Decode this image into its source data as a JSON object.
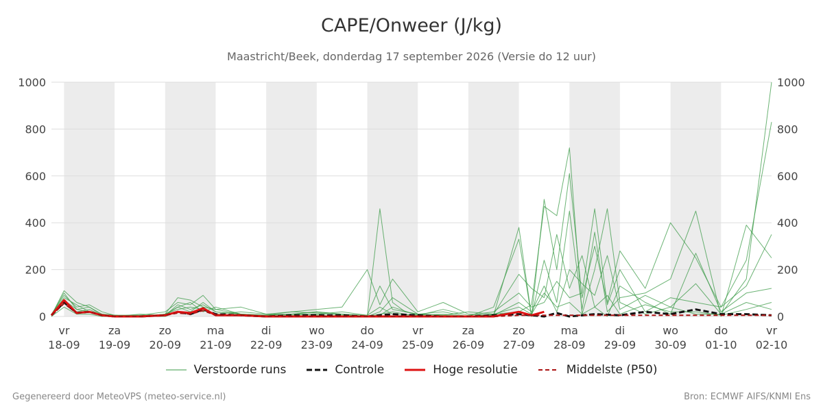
{
  "header": {
    "title": "CAPE/Onweer (J/kg)",
    "subtitle": "Maastricht/Beek, donderdag 17 september 2026 (Versie do 12 uur)"
  },
  "footer": {
    "left": "Gegenereerd door MeteoVPS (meteo-service.nl)",
    "right": "Bron: ECMWF AIFS/KNMI Ens"
  },
  "legend": {
    "perturbed": "Verstoorde runs",
    "control": "Controle",
    "high_res": "Hoge resolutie",
    "median": "Middelste (P50)"
  },
  "colors": {
    "perturbed": "#3a9a45",
    "control": "#111111",
    "high_res": "#dd1111",
    "median": "#aa1111",
    "weekend_band": "#ececec",
    "grid": "#dddddd"
  },
  "chart_data": {
    "type": "line",
    "title": "CAPE/Onweer (J/kg)",
    "ylim": [
      0,
      1000
    ],
    "yticks": [
      0,
      200,
      400,
      600,
      800,
      1000
    ],
    "xlim": [
      17.75,
      32.0
    ],
    "grid": true,
    "legend_position": "bottom",
    "day_ticks": [
      {
        "day": "vr",
        "date": "18-09"
      },
      {
        "day": "za",
        "date": "19-09"
      },
      {
        "day": "zo",
        "date": "20-09"
      },
      {
        "day": "ma",
        "date": "21-09"
      },
      {
        "day": "di",
        "date": "22-09"
      },
      {
        "day": "wo",
        "date": "23-09"
      },
      {
        "day": "do",
        "date": "24-09"
      },
      {
        "day": "vr",
        "date": "25-09"
      },
      {
        "day": "za",
        "date": "26-09"
      },
      {
        "day": "zo",
        "date": "27-09"
      },
      {
        "day": "ma",
        "date": "28-09"
      },
      {
        "day": "di",
        "date": "29-09"
      },
      {
        "day": "wo",
        "date": "30-09"
      },
      {
        "day": "do",
        "date": "01-10"
      },
      {
        "day": "vr",
        "date": "02-10"
      }
    ],
    "shaded_days": [
      0,
      2,
      4,
      6,
      8,
      10,
      12,
      14
    ],
    "series": [
      {
        "kind": "perturbed",
        "x": [
          17.75,
          18,
          18.25,
          18.5,
          18.75,
          19,
          19.5,
          20,
          20.25,
          20.5,
          20.75,
          21,
          21.5,
          22,
          22.5,
          23,
          23.5,
          24,
          24.25,
          24.5,
          24.75,
          25,
          25.5,
          26,
          26.5,
          27,
          27.25,
          27.5,
          27.75,
          28,
          28.25,
          28.5,
          28.75,
          29,
          29.5,
          30,
          30.5,
          31,
          31.5,
          32
        ],
        "values": [
          5,
          110,
          60,
          40,
          10,
          5,
          0,
          10,
          80,
          70,
          40,
          30,
          10,
          5,
          10,
          20,
          10,
          0,
          460,
          60,
          20,
          10,
          5,
          0,
          10,
          20,
          50,
          470,
          430,
          720,
          10,
          200,
          460,
          60,
          10,
          40,
          10,
          10,
          160,
          1000
        ]
      },
      {
        "kind": "perturbed",
        "x": [
          17.75,
          18,
          18.25,
          18.5,
          18.75,
          19,
          19.5,
          20,
          20.25,
          20.5,
          20.75,
          21,
          21.5,
          22,
          22.5,
          23,
          23.5,
          24,
          24.25,
          24.5,
          25,
          25.5,
          26,
          26.5,
          27,
          27.25,
          27.5,
          27.75,
          28,
          28.25,
          28.5,
          28.75,
          29,
          29.5,
          30,
          30.5,
          31,
          31.5,
          32
        ],
        "values": [
          10,
          90,
          40,
          50,
          20,
          5,
          5,
          20,
          60,
          50,
          90,
          30,
          40,
          10,
          20,
          30,
          40,
          200,
          50,
          160,
          20,
          60,
          10,
          5,
          380,
          0,
          500,
          200,
          610,
          80,
          300,
          60,
          280,
          120,
          400,
          250,
          40,
          240,
          830
        ]
      },
      {
        "kind": "perturbed",
        "x": [
          17.75,
          18,
          18.25,
          18.5,
          18.75,
          19,
          19.5,
          20,
          20.25,
          20.5,
          20.75,
          21,
          21.5,
          22,
          22.5,
          23,
          23.5,
          24,
          24.25,
          24.5,
          25,
          25.5,
          26,
          26.5,
          27,
          27.25,
          27.5,
          27.75,
          28,
          28.25,
          28.5,
          28.75,
          29,
          29.5,
          30,
          30.5,
          31,
          31.5,
          32
        ],
        "values": [
          0,
          70,
          30,
          20,
          5,
          0,
          10,
          5,
          40,
          20,
          60,
          20,
          10,
          5,
          10,
          20,
          10,
          5,
          130,
          30,
          10,
          20,
          0,
          40,
          330,
          0,
          240,
          60,
          450,
          30,
          360,
          20,
          80,
          100,
          160,
          450,
          0,
          390,
          250
        ]
      },
      {
        "kind": "perturbed",
        "x": [
          17.75,
          18,
          18.25,
          18.5,
          18.75,
          19,
          19.5,
          20,
          20.25,
          20.5,
          20.75,
          21,
          21.5,
          22,
          22.5,
          23,
          23.5,
          24,
          24.25,
          24.5,
          25,
          25.5,
          26,
          26.5,
          27,
          27.25,
          27.5,
          27.75,
          28,
          28.25,
          28.5,
          28.75,
          29,
          29.5,
          30,
          30.5,
          31,
          31.5,
          32
        ],
        "values": [
          5,
          60,
          20,
          30,
          5,
          5,
          0,
          10,
          30,
          40,
          30,
          10,
          20,
          10,
          5,
          10,
          5,
          0,
          20,
          80,
          10,
          5,
          20,
          10,
          180,
          120,
          80,
          350,
          120,
          260,
          40,
          0,
          130,
          60,
          10,
          270,
          20,
          100,
          120
        ]
      },
      {
        "kind": "perturbed",
        "x": [
          17.75,
          18,
          18.25,
          18.5,
          18.75,
          19,
          19.5,
          20,
          20.25,
          20.5,
          20.75,
          21,
          21.5,
          22,
          22.5,
          23,
          23.5,
          24,
          24.25,
          24.5,
          25,
          25.5,
          26,
          26.5,
          27,
          27.25,
          27.5,
          27.75,
          28,
          28.25,
          28.5,
          28.75,
          29,
          29.5,
          30,
          30.5,
          31,
          31.5,
          32
        ],
        "values": [
          0,
          40,
          10,
          10,
          0,
          0,
          0,
          0,
          20,
          10,
          40,
          5,
          5,
          0,
          0,
          5,
          0,
          0,
          10,
          20,
          0,
          0,
          0,
          5,
          60,
          20,
          130,
          20,
          200,
          140,
          90,
          260,
          30,
          90,
          40,
          140,
          10,
          60,
          30
        ]
      },
      {
        "kind": "perturbed",
        "x": [
          17.75,
          18,
          18.25,
          18.5,
          18.75,
          19,
          19.5,
          20,
          20.25,
          20.5,
          20.75,
          21,
          21.5,
          22,
          22.5,
          23,
          23.5,
          24,
          24.25,
          24.5,
          25,
          25.5,
          26,
          26.5,
          27,
          27.25,
          27.5,
          27.75,
          28,
          28.25,
          28.5,
          28.75,
          29,
          29.5,
          30,
          30.5,
          31,
          31.5,
          32
        ],
        "values": [
          10,
          80,
          50,
          20,
          10,
          5,
          5,
          5,
          50,
          30,
          50,
          20,
          10,
          5,
          10,
          10,
          20,
          5,
          40,
          10,
          5,
          30,
          5,
          20,
          100,
          40,
          60,
          150,
          80,
          100,
          460,
          50,
          200,
          20,
          80,
          60,
          40,
          130,
          350
        ]
      },
      {
        "kind": "perturbed",
        "x": [
          17.75,
          18,
          18.25,
          18.5,
          18.75,
          19,
          19.5,
          20,
          20.25,
          20.5,
          20.75,
          21,
          21.5,
          22,
          22.5,
          23,
          23.5,
          24,
          24.25,
          24.5,
          25,
          25.5,
          26,
          26.5,
          27,
          27.25,
          27.5,
          27.75,
          28,
          28.25,
          28.5,
          28.75,
          29,
          29.5,
          30,
          30.5,
          31,
          31.5,
          32
        ],
        "values": [
          5,
          100,
          30,
          40,
          5,
          5,
          0,
          10,
          40,
          60,
          20,
          40,
          10,
          5,
          20,
          15,
          10,
          0,
          5,
          40,
          5,
          10,
          0,
          10,
          40,
          10,
          100,
          40,
          60,
          10,
          40,
          90,
          10,
          50,
          20,
          20,
          5,
          30,
          60
        ]
      },
      {
        "kind": "control",
        "x": [
          17.75,
          18,
          18.25,
          18.5,
          18.75,
          19,
          19.5,
          20,
          20.25,
          20.5,
          20.75,
          21,
          21.5,
          22,
          22.5,
          23,
          23.5,
          24,
          24.5,
          25,
          25.5,
          26,
          26.5,
          27,
          27.25,
          27.5,
          27.75,
          28,
          28.5,
          29,
          29.5,
          30,
          30.5,
          31,
          31.5,
          32
        ],
        "values": [
          5,
          60,
          15,
          20,
          5,
          0,
          0,
          5,
          20,
          10,
          30,
          10,
          5,
          0,
          5,
          5,
          5,
          0,
          10,
          5,
          0,
          0,
          5,
          10,
          5,
          0,
          15,
          0,
          10,
          5,
          20,
          10,
          30,
          10,
          10,
          5
        ]
      },
      {
        "kind": "high_res",
        "x": [
          17.75,
          18,
          18.25,
          18.5,
          18.75,
          19,
          19.5,
          20,
          20.25,
          20.5,
          20.75,
          21,
          21.5,
          22,
          22.5,
          23,
          23.5,
          24,
          24.5,
          25,
          25.5,
          26,
          26.5,
          27,
          27.25,
          27.5
        ],
        "values": [
          5,
          70,
          15,
          20,
          5,
          0,
          0,
          5,
          20,
          15,
          35,
          5,
          5,
          0,
          0,
          0,
          0,
          0,
          0,
          0,
          0,
          0,
          0,
          20,
          5,
          20
        ]
      },
      {
        "kind": "median",
        "x": [
          17.75,
          18,
          18.25,
          18.5,
          18.75,
          19,
          19.5,
          20,
          20.25,
          20.5,
          20.75,
          21,
          21.5,
          22,
          22.5,
          23,
          23.5,
          24,
          24.5,
          25,
          25.5,
          26,
          26.5,
          27,
          27.5,
          28,
          28.5,
          29,
          29.5,
          30,
          30.5,
          31,
          31.5,
          32
        ],
        "values": [
          5,
          55,
          15,
          20,
          5,
          0,
          0,
          5,
          15,
          10,
          25,
          5,
          5,
          0,
          0,
          0,
          0,
          0,
          0,
          0,
          0,
          0,
          0,
          5,
          5,
          5,
          5,
          5,
          5,
          5,
          5,
          5,
          5,
          5
        ]
      }
    ]
  }
}
